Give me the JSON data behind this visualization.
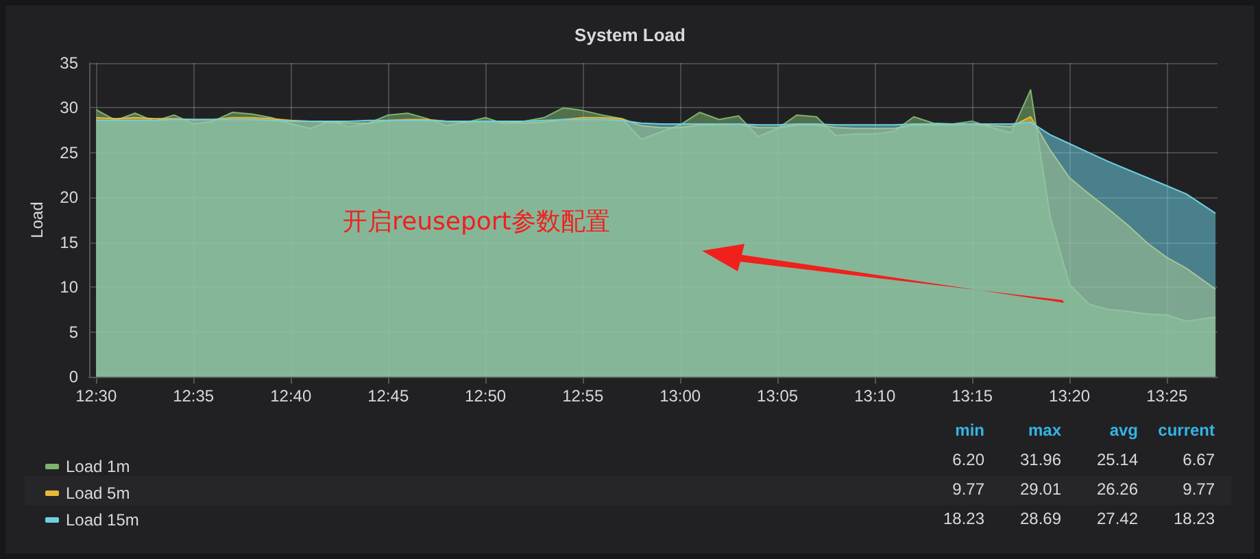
{
  "chart_data": {
    "type": "area",
    "title": "System Load",
    "ylabel": "Load",
    "x": [
      12.5,
      12.5167,
      12.5333,
      12.55,
      12.5667,
      12.5833,
      12.6,
      12.6167,
      12.6333,
      12.65,
      12.6667,
      12.6833,
      12.7,
      12.7167,
      12.7333,
      12.75,
      12.7667,
      12.7833,
      12.8,
      12.8167,
      12.8333,
      12.85,
      12.8667,
      12.8833,
      12.9,
      12.9167,
      12.9333,
      12.95,
      12.9667,
      12.9833,
      13,
      13.0167,
      13.0333,
      13.05,
      13.0667,
      13.0833,
      13.1,
      13.1167,
      13.1333,
      13.15,
      13.1667,
      13.1833,
      13.2,
      13.2167,
      13.2333,
      13.25,
      13.2667,
      13.2833,
      13.3,
      13.3167,
      13.3333,
      13.35,
      13.3667,
      13.3833,
      13.4,
      13.4167,
      13.4333,
      13.4583
    ],
    "series": [
      {
        "name": "Load 1m",
        "color": "#7eb26d",
        "values": [
          29.8,
          28.6,
          29.4,
          28.5,
          29.2,
          28.2,
          28.5,
          29.5,
          29.3,
          28.9,
          28.2,
          27.7,
          28.5,
          27.9,
          28.3,
          29.2,
          29.4,
          28.8,
          28.0,
          28.4,
          28.9,
          28.2,
          28.5,
          28.9,
          30.0,
          29.7,
          29.2,
          28.8,
          26.5,
          27.3,
          28.1,
          29.5,
          28.7,
          29.1,
          26.8,
          27.7,
          29.2,
          29.0,
          26.9,
          27.1,
          27.1,
          27.4,
          29.0,
          28.3,
          28.2,
          28.5,
          27.8,
          27.2,
          32.0,
          17.9,
          10.3,
          8.1,
          7.5,
          7.3,
          7.0,
          6.9,
          6.2,
          6.67
        ]
      },
      {
        "name": "Load 5m",
        "color": "#eab839",
        "values": [
          28.9,
          28.8,
          28.9,
          28.8,
          28.8,
          28.7,
          28.7,
          28.9,
          28.9,
          28.8,
          28.6,
          28.5,
          28.4,
          28.3,
          28.3,
          28.6,
          28.7,
          28.7,
          28.5,
          28.4,
          28.5,
          28.4,
          28.3,
          28.4,
          28.7,
          28.9,
          28.9,
          28.8,
          28.0,
          27.8,
          27.8,
          28.1,
          28.1,
          28.2,
          27.8,
          27.8,
          28.1,
          28.1,
          27.8,
          27.7,
          27.7,
          27.7,
          28.1,
          28.1,
          28.1,
          28.2,
          28.0,
          27.9,
          29.0,
          25.3,
          22.2,
          20.4,
          18.7,
          16.9,
          14.9,
          13.3,
          12.1,
          9.77
        ]
      },
      {
        "name": "Load 15m",
        "color": "#6ed0e0",
        "values": [
          28.6,
          28.6,
          28.6,
          28.6,
          28.7,
          28.7,
          28.7,
          28.7,
          28.7,
          28.6,
          28.5,
          28.5,
          28.5,
          28.5,
          28.6,
          28.6,
          28.6,
          28.6,
          28.5,
          28.5,
          28.5,
          28.5,
          28.5,
          28.6,
          28.7,
          28.7,
          28.7,
          28.6,
          28.3,
          28.2,
          28.2,
          28.2,
          28.2,
          28.2,
          28.1,
          28.1,
          28.2,
          28.2,
          28.1,
          28.1,
          28.1,
          28.1,
          28.2,
          28.2,
          28.2,
          28.2,
          28.2,
          28.2,
          28.4,
          27.0,
          26.0,
          25.0,
          24.0,
          23.1,
          22.2,
          21.3,
          20.4,
          18.23
        ]
      }
    ],
    "xlim": [
      12.494,
      13.46
    ],
    "xticks": [
      {
        "value": 12.5,
        "label": "12:30"
      },
      {
        "value": 12.5833,
        "label": "12:35"
      },
      {
        "value": 12.6667,
        "label": "12:40"
      },
      {
        "value": 12.75,
        "label": "12:45"
      },
      {
        "value": 12.8333,
        "label": "12:50"
      },
      {
        "value": 12.9167,
        "label": "12:55"
      },
      {
        "value": 13,
        "label": "13:00"
      },
      {
        "value": 13.0833,
        "label": "13:05"
      },
      {
        "value": 13.1667,
        "label": "13:10"
      },
      {
        "value": 13.25,
        "label": "13:15"
      },
      {
        "value": 13.3333,
        "label": "13:20"
      },
      {
        "value": 13.4167,
        "label": "13:25"
      }
    ],
    "ylim": [
      0,
      35
    ],
    "yticks": [
      0,
      5,
      10,
      15,
      20,
      25,
      30,
      35
    ],
    "grid": true,
    "legend": "bottom",
    "marker": "none",
    "line_style": "solid",
    "annotations": [
      "开启reuseport参数配置",
      "min",
      "max",
      "avg",
      "current",
      "6.20",
      "31.96",
      "25.14",
      "6.67",
      "9.77",
      "29.01",
      "26.26",
      "9.77",
      "18.23",
      "28.69",
      "27.42",
      "18.23"
    ]
  }
}
